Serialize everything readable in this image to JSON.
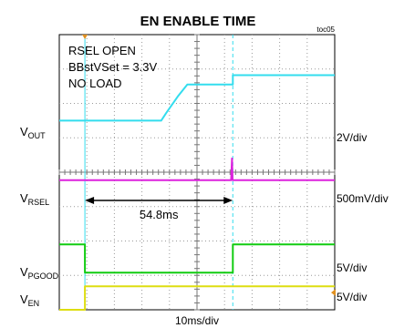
{
  "title": "EN ENABLE TIME",
  "figure_id": "toc05",
  "conditions": [
    "RSEL OPEN",
    "BBstVSet = 3.3V",
    "NO LOAD"
  ],
  "time_scale": "10ms/div",
  "measurement": "54.8ms",
  "colors": {
    "vout": "#33ddee",
    "vrsel": "#dd22dd",
    "vpgood": "#11cc11",
    "ven": "#dddd11",
    "grid": "#9a9a9a",
    "trigger": "#e09020"
  },
  "chart_data": {
    "type": "line",
    "title": "EN ENABLE TIME",
    "xlabel": "10ms/div",
    "x_divisions": 10,
    "y_divisions": 8,
    "annotation": {
      "label": "54.8ms",
      "from_div": 0.93,
      "to_div": 6.3
    },
    "series": [
      {
        "key": "vout",
        "label_main": "V",
        "label_sub": "OUT",
        "scale": "2V/div",
        "points": [
          [
            0,
            5.5
          ],
          [
            3.7,
            5.5
          ],
          [
            3.88,
            5.72
          ],
          [
            4.3,
            6.2
          ],
          [
            4.65,
            6.55
          ],
          [
            6.3,
            6.55
          ],
          [
            6.3,
            6.82
          ],
          [
            10,
            6.82
          ]
        ]
      },
      {
        "key": "vrsel",
        "label_main": "V",
        "label_sub": "RSEL",
        "scale": "500mV/div",
        "points": [
          [
            0,
            3.77
          ],
          [
            6.24,
            3.77
          ],
          [
            6.27,
            4.4
          ],
          [
            6.29,
            3.77
          ],
          [
            10,
            3.77
          ]
        ]
      },
      {
        "key": "vpgood",
        "label_main": "V",
        "label_sub": "PGOOD",
        "scale": "5V/div",
        "points": [
          [
            0,
            1.9
          ],
          [
            0.93,
            1.9
          ],
          [
            0.93,
            1.08
          ],
          [
            6.3,
            1.08
          ],
          [
            6.3,
            1.9
          ],
          [
            10,
            1.9
          ]
        ]
      },
      {
        "key": "ven",
        "label_main": "V",
        "label_sub": "EN",
        "scale": "5V/div",
        "points": [
          [
            0,
            0
          ],
          [
            0.93,
            0
          ],
          [
            0.93,
            0.68
          ],
          [
            10,
            0.68
          ]
        ]
      }
    ]
  }
}
